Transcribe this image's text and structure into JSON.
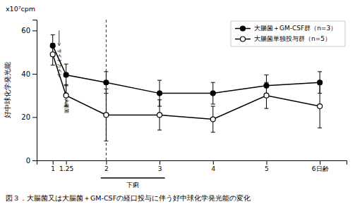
{
  "chart_data": {
    "type": "line",
    "caption": "図３．大腸菌又は大腸菌＋GM-CSFの経口投与に伴う好中球化学発光能の変化",
    "y_label": "好中球化学発光能",
    "y_units": "x10⁷cpm",
    "x": [
      1,
      1.25,
      2,
      3,
      4,
      5,
      6
    ],
    "series": [
      {
        "name": "大腸菌＋GM-CSF群（n=3）",
        "color": "#000000",
        "marker": "circle",
        "values": [
          53,
          39.5,
          36,
          31,
          31,
          34.5,
          36
        ],
        "yerr": [
          5,
          5,
          5,
          6,
          5,
          5,
          5
        ]
      },
      {
        "name": "大腸菌単独投与群（n=5）",
        "color": "#000000",
        "marker": "open_circle",
        "values": [
          49,
          30,
          21,
          21,
          19,
          30,
          25
        ],
        "yerr": [
          5,
          5,
          12,
          7,
          6,
          6,
          10
        ]
      }
    ],
    "xlim": [
      0.7,
      6.5
    ],
    "xticks": [
      1,
      1.25,
      2,
      3,
      4,
      5,
      {
        "value": 6,
        "label": "6日齢"
      }
    ],
    "ylim": [
      0,
      65
    ],
    "yticks": [
      0,
      20,
      40,
      60
    ],
    "grid": false,
    "legend": "upper-right",
    "vlines": [
      2
    ],
    "annotations": [
      {
        "text": "サイトカイン",
        "x": 1.12,
        "arrow_y": [
          60,
          53
        ]
      },
      {
        "text": "大腸菌",
        "x": 1.25,
        "arrow_y": [
          37,
          30
        ]
      }
    ],
    "spans": [
      {
        "text": "下痢",
        "x_range": [
          1.9,
          3.1
        ]
      }
    ]
  }
}
